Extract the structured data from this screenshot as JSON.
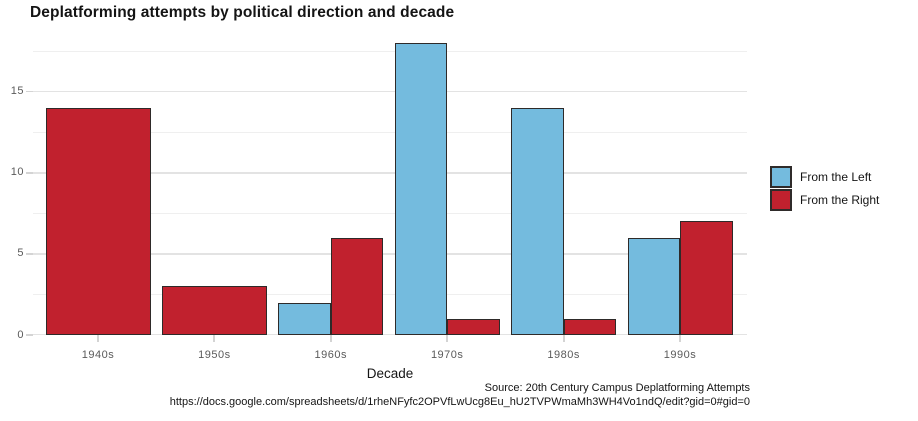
{
  "chart_data": {
    "type": "bar",
    "title": "Deplatforming attempts by political direction and decade",
    "xlabel": "Decade",
    "ylabel": "",
    "categories": [
      "1940s",
      "1950s",
      "1960s",
      "1970s",
      "1980s",
      "1990s"
    ],
    "series": [
      {
        "name": "From the Left",
        "color": "#74BBDE",
        "values": [
          null,
          null,
          2,
          18,
          14,
          6
        ]
      },
      {
        "name": "From the Right",
        "color": "#C1212E",
        "values": [
          14,
          3,
          6,
          1,
          1,
          7
        ]
      }
    ],
    "ylim": [
      0,
      18.8
    ],
    "yticks_major": [
      0,
      5,
      10,
      15
    ],
    "yticks_minor": [
      2.5,
      7.5,
      12.5,
      17.5
    ],
    "grid": "on",
    "legend_position": "right",
    "bar_border_color": "#2E2A29"
  },
  "caption": {
    "source": "Source: 20th Century Campus Deplatforming Attempts",
    "url": "https://docs.google.com/spreadsheets/d/1rheNFyfc2OPVfLwUcg8Eu_hU2TVPWmaMh3WH4Vo1ndQ/edit?gid=0#gid=0"
  },
  "colors": {
    "background": "#FFFFFF",
    "gridline_major": "#E3E3E3",
    "gridline_minor": "#EFEFEF",
    "tick": "#D4D4D4",
    "axis_text": "#5A5A5A",
    "text": "#151515"
  }
}
